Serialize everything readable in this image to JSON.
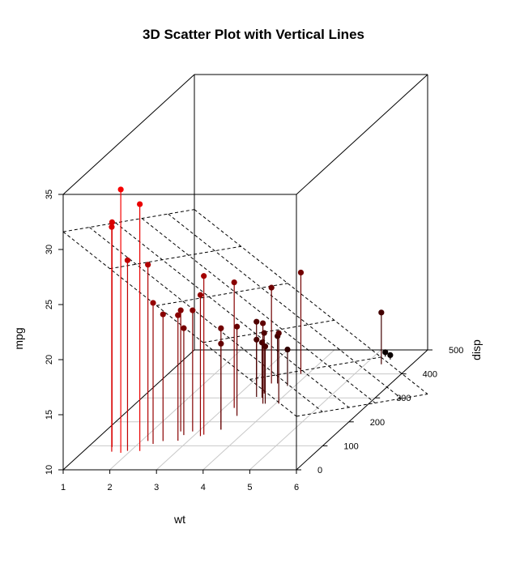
{
  "chart_data": {
    "type": "scatter3d",
    "title": "3D Scatter Plot with Vertical Lines",
    "xlabel": "wt",
    "ylabel": "disp",
    "zlabel": "mpg",
    "xlim": [
      1,
      6
    ],
    "ylim": [
      0,
      500
    ],
    "zlim": [
      10,
      35
    ],
    "x_ticks": [
      "1",
      "2",
      "3",
      "4",
      "5",
      "6"
    ],
    "y_ticks": [
      "0",
      "100",
      "200",
      "300",
      "400",
      "500"
    ],
    "z_ticks": [
      "10",
      "15",
      "20",
      "25",
      "30",
      "35"
    ],
    "grid": true,
    "regression_plane": true,
    "points": [
      {
        "x": 2.62,
        "y": 160.0,
        "z": 21.0
      },
      {
        "x": 2.875,
        "y": 160.0,
        "z": 21.0
      },
      {
        "x": 2.32,
        "y": 108.0,
        "z": 22.8
      },
      {
        "x": 3.215,
        "y": 258.0,
        "z": 21.4
      },
      {
        "x": 3.44,
        "y": 360.0,
        "z": 18.7
      },
      {
        "x": 3.46,
        "y": 225.0,
        "z": 18.1
      },
      {
        "x": 3.57,
        "y": 360.0,
        "z": 14.3
      },
      {
        "x": 3.19,
        "y": 146.7,
        "z": 24.4
      },
      {
        "x": 3.15,
        "y": 140.8,
        "z": 22.8
      },
      {
        "x": 3.44,
        "y": 167.6,
        "z": 19.2
      },
      {
        "x": 3.44,
        "y": 167.6,
        "z": 17.8
      },
      {
        "x": 4.07,
        "y": 275.8,
        "z": 16.4
      },
      {
        "x": 3.73,
        "y": 275.8,
        "z": 17.3
      },
      {
        "x": 3.78,
        "y": 275.8,
        "z": 15.2
      },
      {
        "x": 5.25,
        "y": 472.0,
        "z": 10.4
      },
      {
        "x": 5.424,
        "y": 460.0,
        "z": 10.4
      },
      {
        "x": 5.345,
        "y": 440.0,
        "z": 14.7
      },
      {
        "x": 2.2,
        "y": 78.7,
        "z": 32.4
      },
      {
        "x": 1.615,
        "y": 75.7,
        "z": 30.4
      },
      {
        "x": 1.835,
        "y": 71.1,
        "z": 33.9
      },
      {
        "x": 2.465,
        "y": 120.1,
        "z": 21.5
      },
      {
        "x": 3.52,
        "y": 318.0,
        "z": 15.5
      },
      {
        "x": 3.435,
        "y": 304.0,
        "z": 15.2
      },
      {
        "x": 3.84,
        "y": 350.0,
        "z": 13.3
      },
      {
        "x": 3.845,
        "y": 400.0,
        "z": 19.2
      },
      {
        "x": 1.935,
        "y": 79.0,
        "z": 27.3
      },
      {
        "x": 2.14,
        "y": 120.3,
        "z": 26.0
      },
      {
        "x": 1.513,
        "y": 95.1,
        "z": 30.4
      },
      {
        "x": 3.17,
        "y": 351.0,
        "z": 15.8
      },
      {
        "x": 2.77,
        "y": 145.0,
        "z": 19.7
      },
      {
        "x": 3.57,
        "y": 301.0,
        "z": 15.0
      },
      {
        "x": 2.78,
        "y": 121.0,
        "z": 21.4
      }
    ]
  }
}
